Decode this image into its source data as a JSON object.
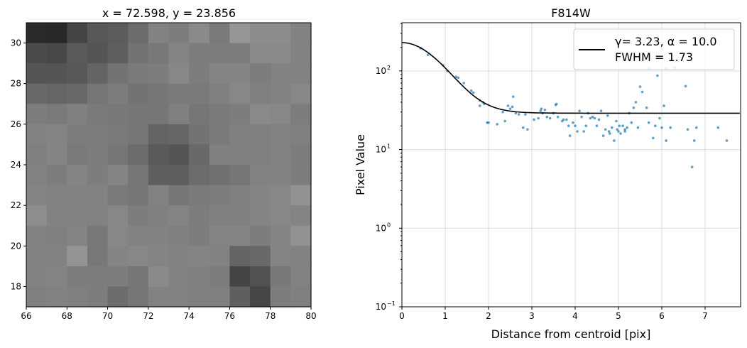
{
  "chart_data": [
    {
      "type": "heatmap",
      "title": "x = 72.598, y = 23.856",
      "xlim": [
        66,
        80
      ],
      "ylim": [
        17,
        31
      ],
      "xticks": [
        "66",
        "68",
        "70",
        "72",
        "74",
        "76",
        "78",
        "80"
      ],
      "yticks": [
        "18",
        "20",
        "22",
        "24",
        "26",
        "28",
        "30"
      ],
      "colormap": "gray",
      "rows_top_to_bottom_gray": [
        [
          42,
          40,
          68,
          88,
          92,
          108,
          130,
          125,
          138,
          122,
          150,
          140,
          140,
          130
        ],
        [
          75,
          72,
          90,
          85,
          95,
          115,
          120,
          132,
          125,
          125,
          125,
          138,
          138,
          130
        ],
        [
          85,
          85,
          88,
          100,
          115,
          122,
          125,
          135,
          125,
          132,
          132,
          125,
          130,
          130
        ],
        [
          105,
          102,
          105,
          118,
          125,
          115,
          118,
          122,
          122,
          128,
          135,
          128,
          130,
          135
        ],
        [
          125,
          122,
          128,
          122,
          120,
          118,
          118,
          128,
          118,
          122,
          125,
          138,
          135,
          125
        ],
        [
          130,
          132,
          125,
          125,
          122,
          118,
          100,
          102,
          115,
          122,
          128,
          128,
          130,
          128
        ],
        [
          128,
          132,
          122,
          125,
          118,
          108,
          90,
          85,
          105,
          128,
          128,
          128,
          130,
          125
        ],
        [
          130,
          125,
          132,
          125,
          132,
          118,
          95,
          95,
          108,
          112,
          118,
          130,
          130,
          125
        ],
        [
          132,
          130,
          130,
          130,
          122,
          118,
          130,
          118,
          122,
          125,
          128,
          132,
          135,
          145
        ],
        [
          142,
          130,
          130,
          130,
          135,
          125,
          128,
          132,
          125,
          128,
          128,
          132,
          135,
          132
        ],
        [
          130,
          128,
          132,
          120,
          135,
          130,
          130,
          128,
          125,
          132,
          132,
          125,
          132,
          145
        ],
        [
          130,
          130,
          148,
          120,
          132,
          135,
          132,
          130,
          132,
          130,
          100,
          105,
          132,
          130
        ],
        [
          130,
          132,
          125,
          125,
          125,
          118,
          138,
          130,
          128,
          125,
          68,
          82,
          120,
          130
        ],
        [
          128,
          130,
          128,
          125,
          108,
          118,
          130,
          130,
          128,
          128,
          95,
          70,
          125,
          128
        ]
      ]
    },
    {
      "type": "scatter",
      "title": "F814W",
      "xlabel": "Distance from centroid [pix]",
      "ylabel": "Pixel Value",
      "xlim": [
        0,
        7.82
      ],
      "ylim": [
        0.1,
        410
      ],
      "yscale": "log",
      "grid": true,
      "xticks": [
        "0",
        "1",
        "2",
        "3",
        "4",
        "5",
        "6",
        "7"
      ],
      "yticks": [
        {
          "v": 0.1,
          "base": "10",
          "exp": "−1"
        },
        {
          "v": 1,
          "base": "10",
          "exp": "0"
        },
        {
          "v": 10,
          "base": "10",
          "exp": "1"
        },
        {
          "v": 100,
          "base": "10",
          "exp": "2"
        }
      ],
      "legend": {
        "position": "top-right",
        "line1": "γ= 3.23, α = 10.0",
        "line2": "FWHM = 1.73"
      },
      "fit": {
        "gamma": 3.23,
        "alpha": 10.0,
        "amplitude": 200,
        "background": 29
      },
      "point_color": "#1f77b4",
      "points": [
        [
          0.43,
          195
        ],
        [
          0.6,
          160
        ],
        [
          0.95,
          118
        ],
        [
          1.05,
          100
        ],
        [
          1.25,
          84
        ],
        [
          1.3,
          82
        ],
        [
          1.43,
          70
        ],
        [
          1.6,
          56
        ],
        [
          1.65,
          53
        ],
        [
          1.8,
          42
        ],
        [
          1.8,
          36
        ],
        [
          1.87,
          40
        ],
        [
          1.9,
          38
        ],
        [
          1.97,
          22
        ],
        [
          2.2,
          21
        ],
        [
          2.33,
          30
        ],
        [
          2.38,
          23
        ],
        [
          2.45,
          36
        ],
        [
          2.5,
          33
        ],
        [
          2.55,
          35
        ],
        [
          2.57,
          47
        ],
        [
          2.63,
          29
        ],
        [
          2.7,
          28
        ],
        [
          2.8,
          19
        ],
        [
          2.85,
          28
        ],
        [
          2.9,
          18
        ],
        [
          3.05,
          24
        ],
        [
          3.2,
          31
        ],
        [
          3.22,
          33
        ],
        [
          3.25,
          29
        ],
        [
          3.3,
          32
        ],
        [
          3.35,
          26
        ],
        [
          3.42,
          25
        ],
        [
          3.5,
          29
        ],
        [
          3.55,
          37
        ],
        [
          3.57,
          38
        ],
        [
          3.6,
          26
        ],
        [
          3.7,
          23
        ],
        [
          3.73,
          24
        ],
        [
          3.8,
          24
        ],
        [
          3.85,
          20
        ],
        [
          3.88,
          15
        ],
        [
          3.95,
          22
        ],
        [
          4.0,
          20
        ],
        [
          4.05,
          17
        ],
        [
          4.1,
          31
        ],
        [
          4.15,
          26
        ],
        [
          4.2,
          17
        ],
        [
          4.25,
          20
        ],
        [
          4.3,
          29
        ],
        [
          4.4,
          26
        ],
        [
          4.45,
          25
        ],
        [
          4.5,
          20
        ],
        [
          4.55,
          24
        ],
        [
          4.6,
          31
        ],
        [
          4.65,
          15
        ],
        [
          4.7,
          18
        ],
        [
          4.75,
          27
        ],
        [
          4.78,
          17
        ],
        [
          4.8,
          16
        ],
        [
          4.85,
          19
        ],
        [
          4.9,
          13
        ],
        [
          4.95,
          23
        ],
        [
          5.0,
          17
        ],
        [
          5.05,
          16
        ],
        [
          5.1,
          20
        ],
        [
          5.15,
          18
        ],
        [
          5.2,
          19
        ],
        [
          5.25,
          29
        ],
        [
          5.3,
          22
        ],
        [
          5.35,
          34
        ],
        [
          5.4,
          40
        ],
        [
          5.45,
          19
        ],
        [
          5.5,
          63
        ],
        [
          5.55,
          54
        ],
        [
          5.65,
          34
        ],
        [
          5.7,
          22
        ],
        [
          5.8,
          14
        ],
        [
          5.85,
          20
        ],
        [
          5.9,
          87
        ],
        [
          6.0,
          19
        ],
        [
          6.05,
          36
        ],
        [
          6.1,
          13
        ],
        [
          6.2,
          19
        ],
        [
          6.3,
          110
        ],
        [
          6.55,
          64
        ],
        [
          6.6,
          18
        ],
        [
          6.7,
          6
        ],
        [
          6.75,
          13
        ],
        [
          6.8,
          19
        ],
        [
          7.3,
          19
        ],
        [
          7.5,
          13
        ],
        [
          5.7,
          108
        ],
        [
          6.1,
          108
        ],
        [
          4.35,
          25
        ],
        [
          3.15,
          25
        ],
        [
          2.0,
          22
        ],
        [
          5.15,
          17
        ],
        [
          5.95,
          25
        ],
        [
          4.97,
          18
        ],
        [
          5.02,
          20
        ]
      ]
    }
  ]
}
